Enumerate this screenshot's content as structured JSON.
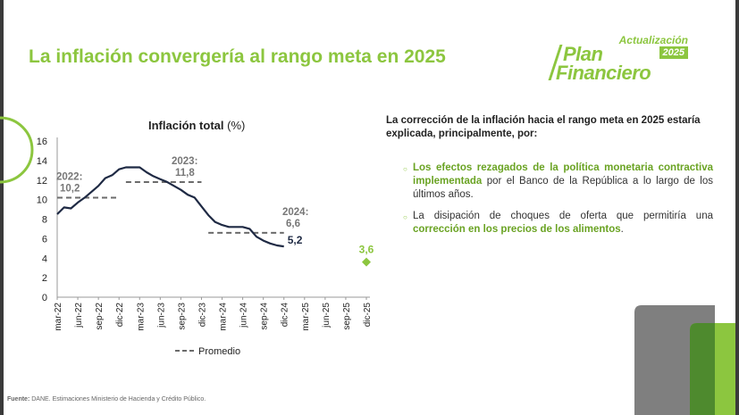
{
  "page": {
    "title": "La inflación convergería al rango meta en 2025",
    "logo": {
      "line1": "Actualización",
      "line2": "Plan",
      "year": "2025",
      "line3": "Financiero"
    },
    "source_label": "Fuente:",
    "source_text": "DANE. Estimaciones Ministerio de Hacienda y Crédito Público.",
    "right_heading": "La corrección de la inflación hacia el rango meta en 2025 estaría explicada, principalmente, por:",
    "bullets": [
      {
        "highlight": "Los efectos rezagados de la política monetaria contractiva implementada",
        "text": " por el Banco de la República a lo largo de los últimos años."
      },
      {
        "text": "La disipación de choques de oferta que permitiría una ",
        "highlight": "corrección en los precios de los alimentos",
        "tail": "."
      }
    ],
    "colors": {
      "accent": "#8cc63f",
      "line": "#1f2a44",
      "avg": "#6b6b6b",
      "forecast": "#8cc63f",
      "grey_shape": "#7f7f7f",
      "green_shape": "#8cc63f",
      "dark_green_shape": "#4e8a2e"
    }
  },
  "chart_data": {
    "type": "line",
    "title": "Inflación total",
    "unit": "(%)",
    "ylim": [
      0,
      16
    ],
    "yticks": [
      0,
      2,
      4,
      6,
      8,
      10,
      12,
      14,
      16
    ],
    "xlim": [
      "2022-03",
      "2025-12"
    ],
    "xticks": [
      "mar-22",
      "jun-22",
      "sep-22",
      "dic-22",
      "mar-23",
      "jun-23",
      "sep-23",
      "dic-23",
      "mar-24",
      "jun-24",
      "sep-24",
      "dic-24",
      "mar-25",
      "jun-25",
      "sep-25",
      "dic-25"
    ],
    "series": [
      {
        "type": "line",
        "x": [
          "2022-03",
          "2022-04",
          "2022-05",
          "2022-06",
          "2022-07",
          "2022-08",
          "2022-09",
          "2022-10",
          "2022-11",
          "2022-12",
          "2023-01",
          "2023-02",
          "2023-03",
          "2023-04",
          "2023-05",
          "2023-06",
          "2023-07",
          "2023-08",
          "2023-09",
          "2023-10",
          "2023-11",
          "2023-12",
          "2024-01",
          "2024-02",
          "2024-03",
          "2024-04",
          "2024-05",
          "2024-06",
          "2024-07",
          "2024-08",
          "2024-09",
          "2024-10",
          "2024-11",
          "2024-12"
        ],
        "y": [
          8.5,
          9.2,
          9.1,
          9.7,
          10.2,
          10.8,
          11.4,
          12.2,
          12.5,
          13.1,
          13.3,
          13.3,
          13.3,
          12.8,
          12.4,
          12.1,
          11.8,
          11.4,
          11.0,
          10.5,
          10.2,
          9.3,
          8.4,
          7.7,
          7.4,
          7.2,
          7.2,
          7.2,
          7.0,
          6.2,
          5.8,
          5.5,
          5.3,
          5.2
        ]
      },
      {
        "name": "Promedio",
        "type": "step",
        "segments": [
          {
            "from": "2022-03",
            "to": "2022-12",
            "value": 10.2,
            "label": "2022:",
            "value_label": "10,2"
          },
          {
            "from": "2023-01",
            "to": "2023-12",
            "value": 11.8,
            "label": "2023:",
            "value_label": "11,8"
          },
          {
            "from": "2024-01",
            "to": "2024-12",
            "value": 6.6,
            "label": "2024:",
            "value_label": "6,6"
          }
        ]
      },
      {
        "type": "point",
        "x": "2025-12",
        "y": 3.6,
        "label": "3,6"
      }
    ],
    "annotations": [
      {
        "x": "2024-12",
        "y": 5.2,
        "label": "5,2"
      }
    ],
    "legend": {
      "placement": "bottom",
      "items": [
        "Promedio"
      ]
    },
    "grid": false
  }
}
